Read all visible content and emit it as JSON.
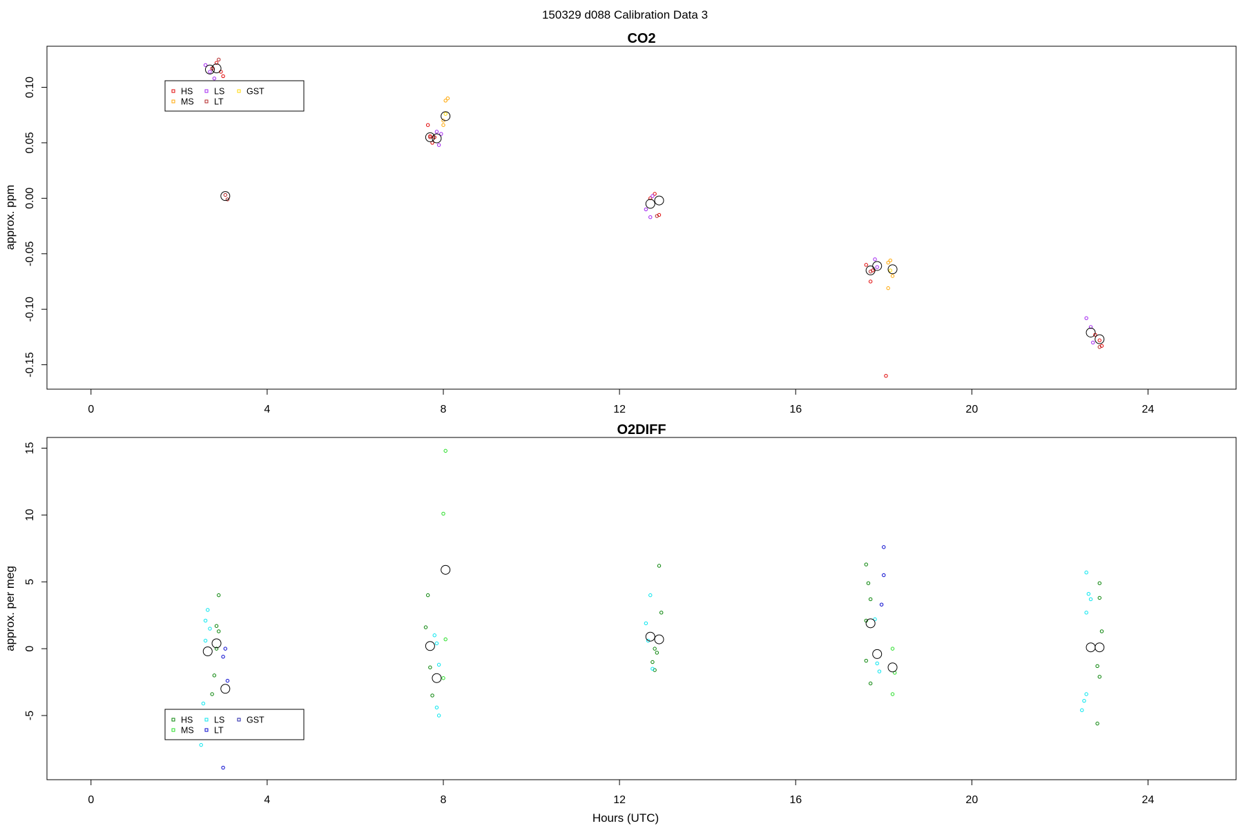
{
  "page": {
    "suptitle": "150329   d088   Calibration Data 3"
  },
  "chart_data": [
    {
      "id": "co2",
      "type": "scatter",
      "title": "CO2",
      "xlabel": "",
      "ylabel": "approx. ppm",
      "xlim": [
        -1,
        26
      ],
      "ylim": [
        -0.172,
        0.137
      ],
      "xticks": [
        0,
        4,
        8,
        12,
        16,
        20,
        24
      ],
      "yticks": [
        -0.15,
        -0.1,
        -0.05,
        0.0,
        0.05,
        0.1
      ],
      "yticklabels": [
        "-0.15",
        "-0.10",
        "-0.05",
        "0.00",
        "0.05",
        "0.10"
      ],
      "legend_position": "top-left",
      "series": [
        {
          "name": "HS",
          "color": "#e00000",
          "points": [
            [
              2.75,
              0.117
            ],
            [
              2.85,
              0.122
            ],
            [
              2.95,
              0.114
            ],
            [
              3.0,
              0.11
            ],
            [
              7.65,
              0.066
            ],
            [
              7.7,
              0.056
            ],
            [
              7.75,
              0.05
            ],
            [
              7.8,
              0.055
            ],
            [
              12.7,
              0.0
            ],
            [
              12.8,
              0.004
            ],
            [
              12.9,
              -0.015
            ],
            [
              17.6,
              -0.06
            ],
            [
              17.7,
              -0.075
            ],
            [
              17.75,
              -0.065
            ],
            [
              18.05,
              -0.16
            ],
            [
              22.8,
              -0.123
            ],
            [
              22.9,
              -0.128
            ],
            [
              22.95,
              -0.133
            ]
          ]
        },
        {
          "name": "MS",
          "color": "#ffa500",
          "points": [
            [
              8.0,
              0.07
            ],
            [
              8.05,
              0.088
            ],
            [
              8.1,
              0.09
            ],
            [
              8.0,
              0.066
            ],
            [
              18.1,
              -0.058
            ],
            [
              18.15,
              -0.056
            ],
            [
              18.2,
              -0.07
            ],
            [
              18.1,
              -0.081
            ]
          ]
        },
        {
          "name": "LS",
          "color": "#a020f0",
          "points": [
            [
              2.6,
              0.12
            ],
            [
              2.7,
              0.114
            ],
            [
              2.8,
              0.108
            ],
            [
              7.85,
              0.06
            ],
            [
              7.9,
              0.048
            ],
            [
              7.95,
              0.058
            ],
            [
              12.6,
              -0.01
            ],
            [
              12.7,
              -0.017
            ],
            [
              12.75,
              0.002
            ],
            [
              17.8,
              -0.055
            ],
            [
              17.85,
              -0.062
            ],
            [
              22.6,
              -0.108
            ],
            [
              22.7,
              -0.116
            ],
            [
              22.75,
              -0.13
            ]
          ]
        },
        {
          "name": "LT",
          "color": "#b22222",
          "points": [
            [
              2.9,
              0.125
            ],
            [
              3.05,
              0.003
            ],
            [
              3.1,
              -0.001
            ],
            [
              7.7,
              0.055
            ],
            [
              12.85,
              -0.016
            ],
            [
              17.7,
              -0.066
            ],
            [
              22.9,
              -0.134
            ]
          ]
        },
        {
          "name": "GST",
          "color": "#ffd700",
          "points": [
            [
              18.15,
              -0.065
            ],
            [
              8.05,
              0.076
            ]
          ]
        }
      ],
      "means": [
        [
          2.7,
          0.116
        ],
        [
          2.85,
          0.117
        ],
        [
          3.05,
          0.002
        ],
        [
          7.7,
          0.055
        ],
        [
          7.85,
          0.054
        ],
        [
          8.05,
          0.074
        ],
        [
          12.7,
          -0.005
        ],
        [
          12.9,
          -0.002
        ],
        [
          17.7,
          -0.065
        ],
        [
          17.85,
          -0.061
        ],
        [
          18.2,
          -0.064
        ],
        [
          22.7,
          -0.121
        ],
        [
          22.9,
          -0.127
        ]
      ]
    },
    {
      "id": "o2diff",
      "type": "scatter",
      "title": "O2DIFF",
      "xlabel": "Hours (UTC)",
      "ylabel": "approx. per meg",
      "xlim": [
        -1,
        26
      ],
      "ylim": [
        -9.8,
        15.8
      ],
      "xticks": [
        0,
        4,
        8,
        12,
        16,
        20,
        24
      ],
      "yticks": [
        -5,
        0,
        5,
        10,
        15
      ],
      "yticklabels": [
        "-5",
        "0",
        "5",
        "10",
        "15"
      ],
      "legend_position": "bottom-left",
      "series": [
        {
          "name": "HS",
          "color": "#008000",
          "points": [
            [
              2.9,
              4.0
            ],
            [
              2.85,
              1.7
            ],
            [
              2.9,
              1.3
            ],
            [
              2.8,
              -2.0
            ],
            [
              2.75,
              -3.4
            ],
            [
              2.85,
              0.0
            ],
            [
              7.6,
              1.6
            ],
            [
              7.65,
              4.0
            ],
            [
              7.7,
              -1.4
            ],
            [
              7.75,
              -3.5
            ],
            [
              12.8,
              0.0
            ],
            [
              12.85,
              -0.3
            ],
            [
              12.75,
              -1.0
            ],
            [
              12.8,
              -1.6
            ],
            [
              12.9,
              6.2
            ],
            [
              12.95,
              2.7
            ],
            [
              17.6,
              6.3
            ],
            [
              17.65,
              4.9
            ],
            [
              17.7,
              3.7
            ],
            [
              17.6,
              2.1
            ],
            [
              17.6,
              -0.9
            ],
            [
              17.7,
              -2.6
            ],
            [
              22.9,
              4.9
            ],
            [
              22.9,
              3.8
            ],
            [
              22.95,
              1.3
            ],
            [
              22.85,
              -1.3
            ],
            [
              22.9,
              -2.1
            ],
            [
              22.85,
              -5.6
            ]
          ]
        },
        {
          "name": "MS",
          "color": "#22dd22",
          "points": [
            [
              8.05,
              14.8
            ],
            [
              8.0,
              10.1
            ],
            [
              8.05,
              0.7
            ],
            [
              8.0,
              -2.2
            ],
            [
              18.2,
              0.0
            ],
            [
              18.25,
              -1.8
            ],
            [
              18.2,
              -3.4
            ]
          ]
        },
        {
          "name": "LS",
          "color": "#00e5ee",
          "points": [
            [
              2.6,
              2.1
            ],
            [
              2.65,
              2.9
            ],
            [
              2.7,
              1.5
            ],
            [
              2.55,
              -4.1
            ],
            [
              2.5,
              -7.2
            ],
            [
              2.6,
              0.6
            ],
            [
              7.8,
              1.0
            ],
            [
              7.85,
              0.4
            ],
            [
              7.9,
              -1.2
            ],
            [
              7.85,
              -4.4
            ],
            [
              7.9,
              -5.0
            ],
            [
              12.6,
              1.9
            ],
            [
              12.7,
              4.0
            ],
            [
              12.65,
              0.6
            ],
            [
              12.75,
              -1.5
            ],
            [
              17.8,
              2.2
            ],
            [
              17.85,
              -1.1
            ],
            [
              17.9,
              -1.7
            ],
            [
              22.6,
              5.7
            ],
            [
              22.65,
              4.1
            ],
            [
              22.7,
              3.7
            ],
            [
              22.6,
              2.7
            ],
            [
              22.6,
              -3.4
            ],
            [
              22.55,
              -3.9
            ],
            [
              22.5,
              -4.6
            ]
          ]
        },
        {
          "name": "LT",
          "color": "#0000cd",
          "points": [
            [
              3.05,
              0.0
            ],
            [
              3.0,
              -0.6
            ],
            [
              3.1,
              -2.4
            ],
            [
              3.0,
              -8.9
            ],
            [
              18.0,
              7.6
            ],
            [
              18.0,
              5.5
            ],
            [
              17.95,
              3.3
            ]
          ]
        },
        {
          "name": "GST",
          "color": "#1a1aa6",
          "points": []
        }
      ],
      "means": [
        [
          2.65,
          -0.2
        ],
        [
          2.85,
          0.4
        ],
        [
          3.05,
          -3.0
        ],
        [
          7.7,
          0.2
        ],
        [
          7.85,
          -2.2
        ],
        [
          8.05,
          5.9
        ],
        [
          12.7,
          0.9
        ],
        [
          12.9,
          0.7
        ],
        [
          17.7,
          1.9
        ],
        [
          17.85,
          -0.4
        ],
        [
          18.2,
          -1.4
        ],
        [
          22.7,
          0.1
        ],
        [
          22.9,
          0.1
        ]
      ]
    }
  ]
}
